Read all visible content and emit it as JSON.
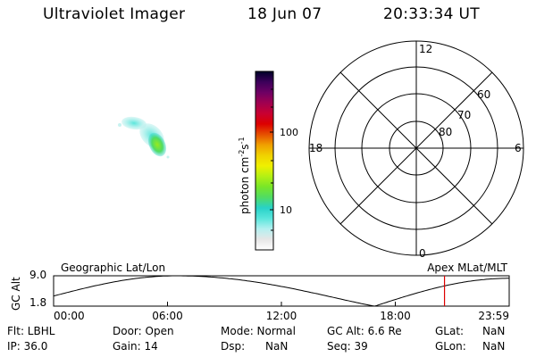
{
  "header": {
    "title": "Ultraviolet Imager",
    "date": "18 Jun 07",
    "time": "20:33:34 UT"
  },
  "colorbar": {
    "label": "photon cm",
    "label_sup1": "-2",
    "label_s": "s",
    "label_sup2": "-1",
    "tick_100": "100",
    "tick_10": "10",
    "stops": [
      "#ffffff",
      "#e6e6e6",
      "#b4f0f0",
      "#5ae6dc",
      "#28d2c8",
      "#50dc64",
      "#78e628",
      "#b4f014",
      "#f0f000",
      "#f0d200",
      "#f0a000",
      "#e65000",
      "#dc0000",
      "#c80032",
      "#a00050",
      "#6e0064",
      "#3c005a",
      "#000028"
    ]
  },
  "polar": {
    "mlt_12": "12",
    "mlt_18": "18",
    "mlt_6": "6",
    "mlt_0": "0",
    "lat_60": "60",
    "lat_70": "70",
    "lat_80": "80"
  },
  "orbit": {
    "left_label": "Geographic Lat/Lon",
    "right_label": "Apex MLat/MLT",
    "axis_label": "GC Alt",
    "y_top": "9.0",
    "y_bottom": "1.8",
    "x_ticks": [
      "00:00",
      "06:00",
      "12:00",
      "18:00",
      "23:59"
    ],
    "current_time_fraction": 0.858,
    "marker_color": "#dd0000"
  },
  "info": {
    "row1": {
      "filter": "Flt: LBHL",
      "door": "Door: Open",
      "mode": "Mode: Normal",
      "gc_alt": "GC Alt: 6.6 Re",
      "glat_label": "GLat:",
      "glat_value": "NaN"
    },
    "row2": {
      "ip": "IP: 36.0",
      "gain": "Gain: 14",
      "dsp_label": "Dsp:",
      "dsp_value": "NaN",
      "seq": "Seq: 39",
      "glon_label": "GLon:",
      "glon_value": "NaN"
    }
  }
}
